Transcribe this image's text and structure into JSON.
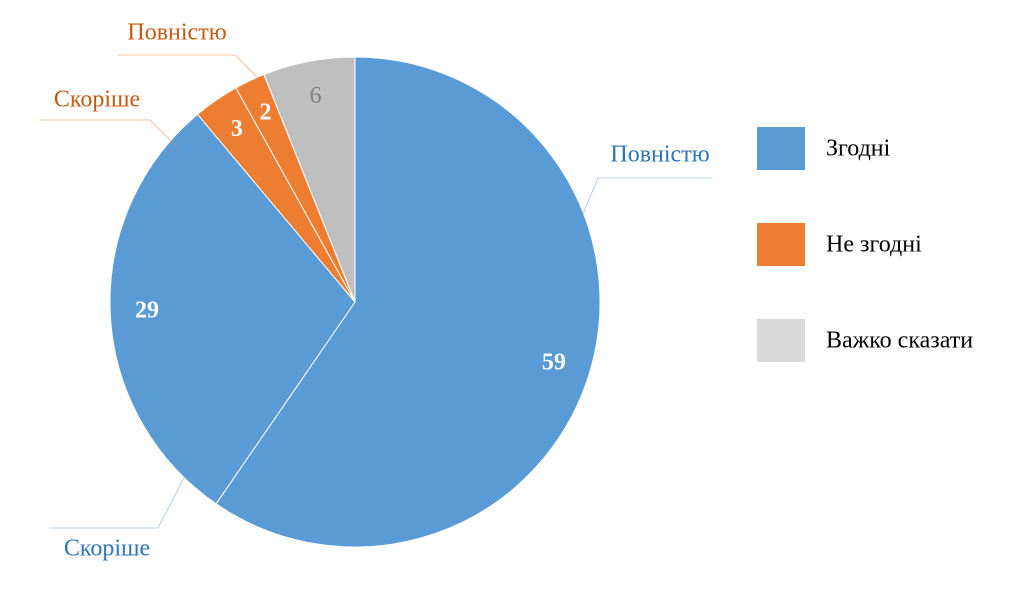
{
  "chart_data": {
    "type": "pie",
    "categories": [
      "Повністю",
      "Скоріше",
      "Скоріше",
      "Повністю",
      null
    ],
    "values": [
      59,
      29,
      3,
      2,
      6
    ],
    "colors": [
      "#5b9bd5",
      "#5b9bd5",
      "#ed7d31",
      "#ed7d31",
      "#bfbfbf"
    ],
    "category_label_colors": [
      "#2e75b6",
      "#2e75b6",
      "#c55a11",
      "#c55a11",
      null
    ],
    "value_label_colors": [
      "#ffffff",
      "#ffffff",
      "#ffffff",
      "#ffffff",
      "#7f7f7f"
    ],
    "legend": [
      {
        "name": "Згодні",
        "color": "#5b9bd5"
      },
      {
        "name": "Не згодні",
        "color": "#ed7d31"
      },
      {
        "name": "Важко сказати",
        "color": "#d9d9d9"
      }
    ]
  }
}
